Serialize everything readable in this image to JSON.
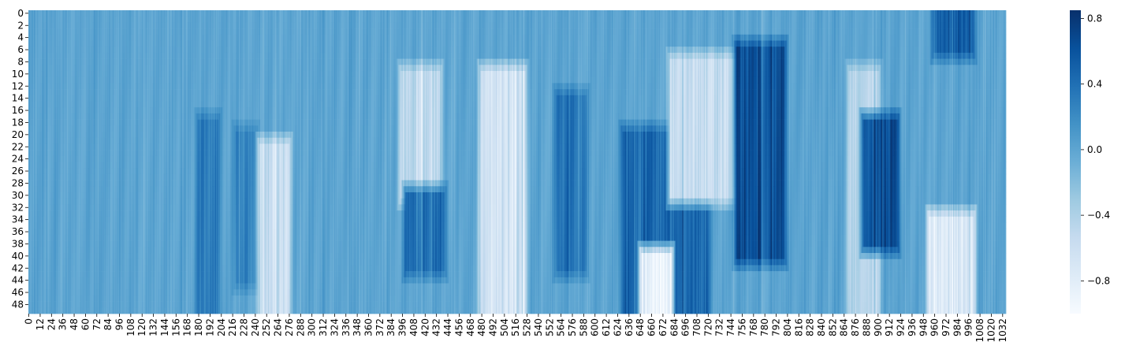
{
  "chart_data": {
    "type": "heatmap",
    "title": "",
    "xlabel": "",
    "ylabel": "",
    "n_rows": 50,
    "n_cols": 1036,
    "colormap": "Blues",
    "color_range": [
      -1.0,
      0.85
    ],
    "colorbar_ticks": [
      0.8,
      0.4,
      0.0,
      -0.4,
      -0.8
    ],
    "colorbar_tick_labels": [
      "0.8",
      "0.4",
      "0.0",
      "−0.4",
      "−0.8"
    ],
    "y_tick_labels": [
      "0",
      "2",
      "4",
      "6",
      "8",
      "10",
      "12",
      "14",
      "16",
      "18",
      "20",
      "22",
      "24",
      "26",
      "28",
      "30",
      "32",
      "34",
      "36",
      "38",
      "40",
      "42",
      "44",
      "46",
      "48"
    ],
    "x_tick_labels": [
      "0",
      "12",
      "24",
      "36",
      "48",
      "60",
      "72",
      "84",
      "96",
      "108",
      "120",
      "132",
      "144",
      "156",
      "168",
      "180",
      "192",
      "204",
      "216",
      "228",
      "240",
      "252",
      "264",
      "276",
      "288",
      "300",
      "312",
      "324",
      "336",
      "348",
      "360",
      "372",
      "384",
      "396",
      "408",
      "420",
      "432",
      "444",
      "456",
      "468",
      "480",
      "492",
      "504",
      "516",
      "528",
      "540",
      "552",
      "564",
      "576",
      "588",
      "600",
      "612",
      "624",
      "636",
      "648",
      "660",
      "672",
      "684",
      "696",
      "708",
      "720",
      "732",
      "744",
      "756",
      "768",
      "780",
      "792",
      "804",
      "816",
      "828",
      "840",
      "852",
      "864",
      "876",
      "888",
      "900",
      "912",
      "924",
      "936",
      "948",
      "960",
      "972",
      "984",
      "996",
      "1008",
      "1020",
      "1032"
    ],
    "regions": [
      {
        "col_range": [
          180,
          200
        ],
        "row_range": [
          18,
          49
        ],
        "value": 0.3
      },
      {
        "col_range": [
          220,
          240
        ],
        "row_range": [
          20,
          44
        ],
        "value": 0.25
      },
      {
        "col_range": [
          245,
          275
        ],
        "row_range": [
          22,
          49
        ],
        "value": -0.55
      },
      {
        "col_range": [
          395,
          435
        ],
        "row_range": [
          10,
          30
        ],
        "value": -0.5
      },
      {
        "col_range": [
          400,
          440
        ],
        "row_range": [
          30,
          42
        ],
        "value": 0.4
      },
      {
        "col_range": [
          480,
          525
        ],
        "row_range": [
          10,
          49
        ],
        "value": -0.65
      },
      {
        "col_range": [
          560,
          590
        ],
        "row_range": [
          14,
          42
        ],
        "value": 0.35
      },
      {
        "col_range": [
          630,
          720
        ],
        "row_range": [
          20,
          49
        ],
        "value": 0.45
      },
      {
        "col_range": [
          650,
          680
        ],
        "row_range": [
          40,
          49
        ],
        "value": -0.9
      },
      {
        "col_range": [
          680,
          760
        ],
        "row_range": [
          8,
          30
        ],
        "value": -0.55
      },
      {
        "col_range": [
          750,
          800
        ],
        "row_range": [
          6,
          40
        ],
        "value": 0.6
      },
      {
        "col_range": [
          870,
          900
        ],
        "row_range": [
          10,
          49
        ],
        "value": -0.45
      },
      {
        "col_range": [
          885,
          920
        ],
        "row_range": [
          18,
          38
        ],
        "value": 0.6
      },
      {
        "col_range": [
          955,
          1000
        ],
        "row_range": [
          34,
          49
        ],
        "value": -0.75
      },
      {
        "col_range": [
          960,
          1000
        ],
        "row_range": [
          0,
          6
        ],
        "value": 0.5
      }
    ]
  }
}
